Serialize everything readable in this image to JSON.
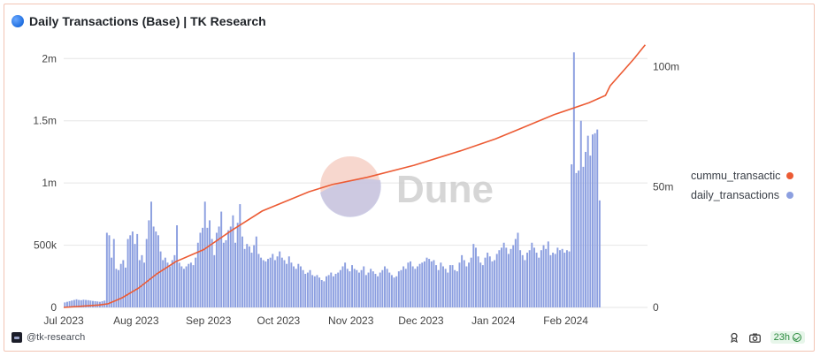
{
  "header": {
    "title": "Daily Transactions (Base) | TK Research"
  },
  "footer": {
    "handle": "@tk-research",
    "refresh": "23h"
  },
  "watermark": {
    "text": "Dune"
  },
  "colors": {
    "bars": "#8c9fe0",
    "line": "#ec5b34",
    "grid": "#e6e6e6",
    "axis_text": "#444444"
  },
  "chart_data": {
    "type": "bar+line",
    "title": "Daily Transactions (Base) | TK Research",
    "x_start": "2023-07-01",
    "x_end": "2024-02-29",
    "xtick_labels": [
      "Jul 2023",
      "Aug 2023",
      "Sep 2023",
      "Oct 2023",
      "Nov 2023",
      "Dec 2023",
      "Jan 2024",
      "Feb 2024"
    ],
    "xtick_days": [
      0,
      31,
      62,
      92,
      123,
      153,
      184,
      215
    ],
    "y_left": {
      "ticks": [
        0,
        500000,
        1000000,
        1500000,
        2000000
      ],
      "tick_labels": [
        "0",
        "500k",
        "1m",
        "1.5m",
        "2m"
      ],
      "ylim": [
        0,
        2130000
      ]
    },
    "y_right": {
      "ticks": [
        0,
        50000000,
        100000000
      ],
      "tick_labels": [
        "0",
        "50m",
        "100m"
      ],
      "ylim": [
        0,
        110000000
      ]
    },
    "legend": [
      "cummu_transactions",
      "daily_transactions"
    ],
    "legend_display": [
      "cummu_transactic",
      "daily_transactions"
    ],
    "series": [
      {
        "name": "cummu_transactions",
        "type": "line",
        "axis": "right",
        "points": [
          [
            0,
            0
          ],
          [
            15,
            1000000
          ],
          [
            19,
            1500000
          ],
          [
            25,
            4000000
          ],
          [
            32,
            8000000
          ],
          [
            40,
            14000000
          ],
          [
            48,
            19000000
          ],
          [
            60,
            24000000
          ],
          [
            72,
            32000000
          ],
          [
            85,
            40000000
          ],
          [
            95,
            44000000
          ],
          [
            105,
            48000000
          ],
          [
            115,
            51000000
          ],
          [
            130,
            54000000
          ],
          [
            150,
            59000000
          ],
          [
            170,
            65000000
          ],
          [
            185,
            70000000
          ],
          [
            195,
            74000000
          ],
          [
            210,
            80000000
          ],
          [
            225,
            85000000
          ],
          [
            232,
            88000000
          ],
          [
            234,
            92000000
          ],
          [
            244,
            103000000
          ],
          [
            249,
            109000000
          ]
        ]
      },
      {
        "name": "daily_transactions",
        "type": "bar",
        "axis": "left",
        "values": [
          40000,
          45000,
          50000,
          55000,
          60000,
          65000,
          60000,
          58000,
          62000,
          60000,
          58000,
          55000,
          52000,
          50000,
          48000,
          45000,
          50000,
          55000,
          600000,
          580000,
          400000,
          550000,
          310000,
          300000,
          350000,
          380000,
          320000,
          550000,
          580000,
          610000,
          510000,
          590000,
          380000,
          420000,
          360000,
          550000,
          700000,
          850000,
          650000,
          610000,
          580000,
          450000,
          380000,
          400000,
          360000,
          330000,
          380000,
          420000,
          660000,
          360000,
          330000,
          310000,
          330000,
          350000,
          360000,
          340000,
          400000,
          520000,
          600000,
          640000,
          850000,
          640000,
          700000,
          550000,
          420000,
          600000,
          650000,
          770000,
          520000,
          540000,
          620000,
          650000,
          740000,
          520000,
          680000,
          830000,
          570000,
          470000,
          510000,
          490000,
          440000,
          500000,
          570000,
          430000,
          400000,
          380000,
          370000,
          390000,
          400000,
          430000,
          380000,
          410000,
          450000,
          400000,
          380000,
          350000,
          410000,
          360000,
          330000,
          310000,
          350000,
          330000,
          300000,
          270000,
          280000,
          300000,
          260000,
          250000,
          260000,
          240000,
          220000,
          210000,
          250000,
          260000,
          280000,
          250000,
          270000,
          280000,
          300000,
          330000,
          360000,
          310000,
          290000,
          340000,
          310000,
          300000,
          280000,
          300000,
          330000,
          260000,
          280000,
          310000,
          290000,
          270000,
          250000,
          280000,
          300000,
          330000,
          310000,
          280000,
          260000,
          240000,
          250000,
          290000,
          300000,
          330000,
          310000,
          360000,
          370000,
          330000,
          310000,
          330000,
          350000,
          360000,
          370000,
          400000,
          390000,
          370000,
          380000,
          340000,
          300000,
          360000,
          330000,
          310000,
          280000,
          340000,
          340000,
          300000,
          290000,
          360000,
          420000,
          380000,
          330000,
          360000,
          400000,
          510000,
          480000,
          410000,
          360000,
          340000,
          400000,
          440000,
          410000,
          370000,
          380000,
          430000,
          460000,
          480000,
          520000,
          480000,
          430000,
          470000,
          500000,
          550000,
          600000,
          460000,
          420000,
          380000,
          440000,
          460000,
          520000,
          480000,
          440000,
          400000,
          460000,
          500000,
          470000,
          530000,
          420000,
          440000,
          430000,
          480000,
          460000,
          470000,
          440000,
          460000,
          450000,
          1150000,
          2050000,
          1080000,
          1100000,
          1500000,
          1130000,
          1250000,
          1380000,
          1220000,
          1390000,
          1400000,
          1430000,
          860000
        ]
      }
    ]
  }
}
